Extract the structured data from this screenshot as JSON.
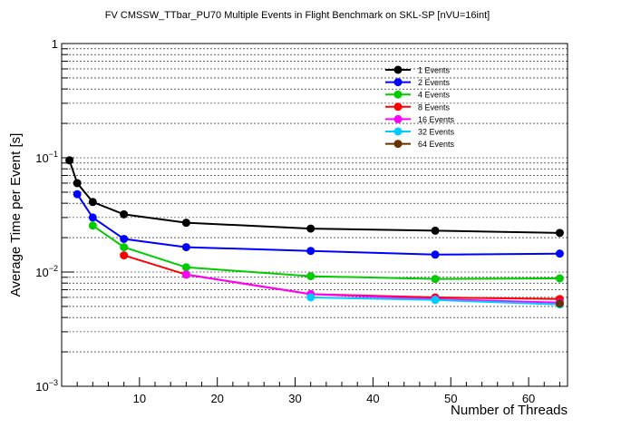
{
  "chart_data": {
    "type": "line",
    "title": "FV CMSSW_TTbar_PU70 Multiple Events in Flight Benchmark on SKL-SP [nVU=16int]",
    "xlabel": "Number of Threads",
    "ylabel": "Average Time per Event [s]",
    "xlim": [
      0,
      65
    ],
    "ylim": [
      0.001,
      1
    ],
    "yscale": "log",
    "x_ticks": [
      10,
      20,
      30,
      40,
      50,
      60
    ],
    "y_tick_labels": [
      {
        "base": "1",
        "exp": "",
        "value": 1
      },
      {
        "base": "10",
        "exp": "−1",
        "value": 0.1
      },
      {
        "base": "10",
        "exp": "−2",
        "value": 0.01
      },
      {
        "base": "10",
        "exp": "−3",
        "value": 0.001
      }
    ],
    "grid": "y-minor-dashed",
    "legend_position": "top-right",
    "series": [
      {
        "name": "1 Events",
        "color": "#000000",
        "x": [
          1,
          2,
          4,
          8,
          16,
          32,
          48,
          64
        ],
        "values": [
          0.095,
          0.06,
          0.041,
          0.032,
          0.027,
          0.024,
          0.023,
          0.022
        ]
      },
      {
        "name": "2 Events",
        "color": "#0000ff",
        "x": [
          2,
          4,
          8,
          16,
          32,
          48,
          64
        ],
        "values": [
          0.048,
          0.03,
          0.0195,
          0.0165,
          0.0153,
          0.0142,
          0.0145
        ]
      },
      {
        "name": "4 Events",
        "color": "#00cc00",
        "x": [
          4,
          8,
          16,
          32,
          48,
          64
        ],
        "values": [
          0.0255,
          0.0165,
          0.011,
          0.0092,
          0.0087,
          0.0088
        ]
      },
      {
        "name": "8 Events",
        "color": "#ff0000",
        "x": [
          8,
          16,
          32,
          48,
          64
        ],
        "values": [
          0.014,
          0.0095,
          0.0064,
          0.006,
          0.0058
        ]
      },
      {
        "name": "16 Events",
        "color": "#ff00ff",
        "x": [
          16,
          32,
          48,
          64
        ],
        "values": [
          0.0095,
          0.0064,
          0.0058,
          0.0054
        ]
      },
      {
        "name": "32 Events",
        "color": "#00ccff",
        "x": [
          32,
          48,
          64
        ],
        "values": [
          0.006,
          0.0057,
          0.0052
        ]
      },
      {
        "name": "64 Events",
        "color": "#663300",
        "x": [
          64
        ],
        "values": [
          0.0053
        ]
      }
    ]
  }
}
